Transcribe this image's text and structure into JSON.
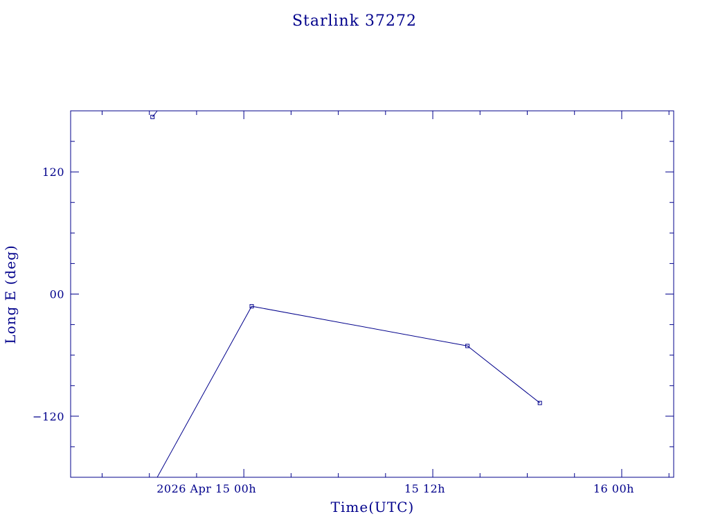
{
  "chart_data": {
    "type": "line",
    "title": "Starlink 37272",
    "xlabel": "Time(UTC)",
    "ylabel": "Long E (deg)",
    "x_unit": "hours since 2026 Apr 15 00h",
    "xlim": [
      -11,
      27.3
    ],
    "ylim": [
      -180,
      180
    ],
    "x_ticks": [
      {
        "value": 0,
        "label": "2026 Apr 15  00h"
      },
      {
        "value": 12,
        "label": "15  12h"
      },
      {
        "value": 24,
        "label": "16  00h"
      }
    ],
    "y_ticks": [
      {
        "value": 120,
        "label": "120"
      },
      {
        "value": 0,
        "label": "00"
      },
      {
        "value": -120,
        "label": "−120"
      }
    ],
    "series": [
      {
        "name": "",
        "segments": [
          {
            "x": [
              -5.8,
              -5.5
            ],
            "y": [
              174,
              180
            ]
          },
          {
            "x": [
              -5.5,
              0.5,
              14.2,
              18.8
            ],
            "y": [
              -180,
              -12,
              -51,
              -107
            ]
          }
        ],
        "markers": [
          {
            "x": -5.8,
            "y": 174
          },
          {
            "x": 0.5,
            "y": -12
          },
          {
            "x": 14.2,
            "y": -51
          },
          {
            "x": 18.8,
            "y": -107
          }
        ]
      }
    ],
    "color": "#00008b",
    "grid": false,
    "legend": "none"
  }
}
